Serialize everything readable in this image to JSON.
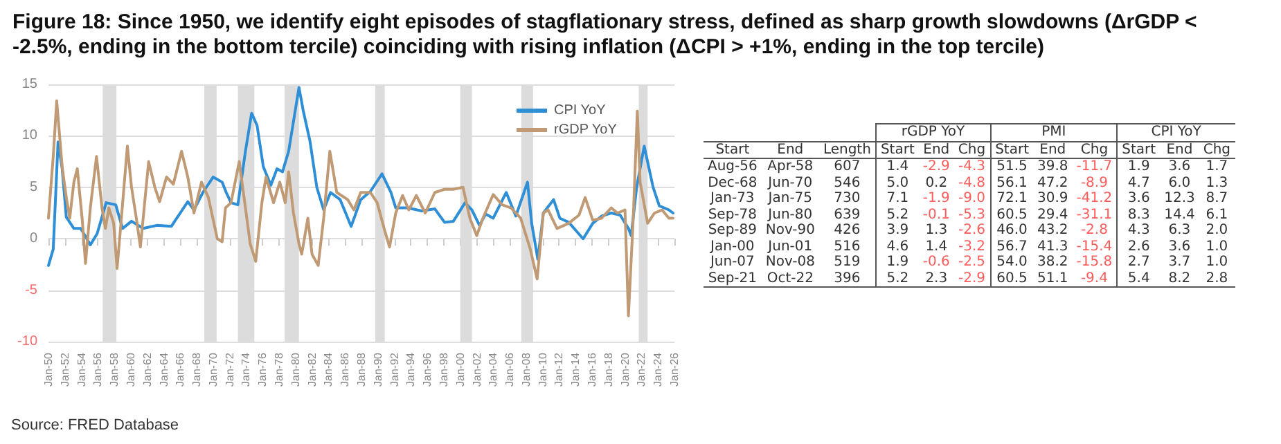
{
  "chart_data": [
    {
      "type": "line",
      "title": "Figure 18: Since 1950, we identify eight episodes of stagflationary stress, defined as sharp growth slowdowns (ΔrGDP < -2.5%, ending in the bottom tercile) coinciding with rising inflation (ΔCPI > +1%, ending in the top tercile)",
      "annotations": [
        "Source: FRED Database"
      ],
      "series": [
        {
          "name": "CPI YoY",
          "color": "#2e8fd6",
          "x": [
            "1950-01",
            "1950-08",
            "1951-03",
            "1951-09",
            "1952-03",
            "1953-02",
            "1953-12",
            "1955-02",
            "1955-12",
            "1957-01",
            "1958-03",
            "1959-01",
            "1960-02",
            "1961-07",
            "1963-03",
            "1964-12",
            "1966-01",
            "1966-12",
            "1967-09",
            "1968-10",
            "1970-01",
            "1971-02",
            "1971-08",
            "1972-03",
            "1973-01",
            "1973-12",
            "1974-09",
            "1975-05",
            "1976-02",
            "1977-01",
            "1977-10",
            "1978-06",
            "1979-03",
            "1980-06",
            "1980-12",
            "1981-10",
            "1982-08",
            "1983-06",
            "1984-04",
            "1985-06",
            "1986-10",
            "1987-12",
            "1989-02",
            "1990-07",
            "1991-08",
            "1992-03",
            "1993-08",
            "1995-05",
            "1996-12",
            "1998-02",
            "1999-03",
            "2000-08",
            "2001-06",
            "2002-05",
            "2003-02",
            "2004-01",
            "2005-08",
            "2006-10",
            "2008-03",
            "2008-09",
            "2009-06",
            "2010-02",
            "2011-05",
            "2012-02",
            "2013-03",
            "2014-12",
            "2016-02",
            "2017-03",
            "2018-05",
            "2019-06",
            "2020-06",
            "2020-10",
            "2021-06",
            "2022-05",
            "2023-06",
            "2024-03",
            "2025-05",
            "2025-11"
          ],
          "values": [
            -2.6,
            -1.0,
            9.4,
            6.8,
            2.1,
            1.0,
            1.0,
            -0.6,
            0.5,
            3.5,
            3.3,
            1.0,
            1.7,
            1.0,
            1.3,
            1.2,
            2.5,
            3.6,
            2.8,
            4.5,
            6.0,
            5.5,
            4.5,
            3.5,
            3.3,
            8.5,
            12.2,
            11.0,
            7.0,
            5.2,
            6.8,
            6.5,
            8.5,
            14.7,
            12.5,
            9.5,
            5.0,
            2.8,
            4.5,
            3.8,
            1.2,
            3.8,
            4.6,
            6.3,
            4.5,
            3.0,
            3.0,
            2.7,
            2.9,
            1.6,
            1.7,
            3.5,
            2.8,
            1.3,
            2.4,
            2.0,
            4.5,
            2.2,
            5.5,
            1.5,
            -2.0,
            2.5,
            3.8,
            2.0,
            1.6,
            0.0,
            1.5,
            2.2,
            2.5,
            2.3,
            1.0,
            0.3,
            5.0,
            9.0,
            5.0,
            3.2,
            2.8,
            2.5
          ]
        },
        {
          "name": "rGDP YoY",
          "color": "#c09a74",
          "x": [
            "1950-01",
            "1950-08",
            "1951-01",
            "1951-09",
            "1952-03",
            "1952-08",
            "1953-02",
            "1953-07",
            "1954-02",
            "1954-07",
            "1955-02",
            "1955-11",
            "1956-07",
            "1956-12",
            "1957-05",
            "1957-12",
            "1958-05",
            "1958-10",
            "1959-08",
            "1960-02",
            "1960-09",
            "1961-03",
            "1962-03",
            "1962-12",
            "1963-07",
            "1964-05",
            "1965-03",
            "1966-03",
            "1966-12",
            "1967-09",
            "1968-08",
            "1969-06",
            "1970-07",
            "1971-02",
            "1971-07",
            "1972-03",
            "1973-03",
            "1973-12",
            "1974-07",
            "1975-03",
            "1975-12",
            "1976-06",
            "1977-05",
            "1978-02",
            "1978-10",
            "1979-03",
            "1979-10",
            "1980-06",
            "1980-10",
            "1981-07",
            "1982-01",
            "1982-10",
            "1983-06",
            "1984-03",
            "1985-01",
            "1986-05",
            "1987-02",
            "1987-12",
            "1989-02",
            "1989-12",
            "1990-10",
            "1991-06",
            "1992-03",
            "1993-01",
            "1993-10",
            "1994-09",
            "1995-10",
            "1996-12",
            "1998-02",
            "1999-03",
            "2000-05",
            "2001-03",
            "2002-01",
            "2002-10",
            "2004-01",
            "2005-02",
            "2006-03",
            "2007-05",
            "2008-07",
            "2009-05",
            "2010-02",
            "2010-09",
            "2011-10",
            "2013-03",
            "2014-06",
            "2015-03",
            "2016-02",
            "2017-03",
            "2018-05",
            "2019-02",
            "2020-01",
            "2020-06",
            "2021-01",
            "2021-07",
            "2021-11",
            "2022-10",
            "2023-08",
            "2024-07",
            "2025-05",
            "2025-11"
          ],
          "values": [
            2.0,
            8.0,
            13.4,
            7.0,
            4.0,
            2.0,
            5.5,
            6.8,
            2.0,
            -2.4,
            3.0,
            8.0,
            3.0,
            1.0,
            3.0,
            1.5,
            -2.9,
            1.0,
            9.0,
            5.0,
            2.0,
            -0.8,
            7.5,
            5.0,
            3.6,
            6.0,
            5.3,
            8.5,
            6.0,
            2.5,
            5.5,
            4.0,
            0.0,
            -0.3,
            3.0,
            3.5,
            7.5,
            3.0,
            -0.5,
            -2.2,
            3.5,
            6.0,
            3.5,
            5.5,
            3.5,
            6.5,
            2.5,
            -0.5,
            -1.5,
            2.0,
            -1.5,
            -2.6,
            2.0,
            8.5,
            4.5,
            3.8,
            2.8,
            4.5,
            4.5,
            3.5,
            1.0,
            -0.8,
            2.5,
            4.2,
            2.8,
            4.2,
            2.5,
            4.5,
            4.8,
            4.8,
            5.0,
            2.0,
            0.3,
            2.0,
            4.3,
            3.3,
            3.0,
            2.0,
            -1.0,
            -3.9,
            2.5,
            2.8,
            1.0,
            1.5,
            2.3,
            4.0,
            1.8,
            2.0,
            3.0,
            2.5,
            2.8,
            -7.5,
            2.0,
            12.4,
            5.5,
            1.5,
            2.5,
            2.8,
            2.0,
            2.0
          ]
        }
      ],
      "bands": [
        {
          "axis": "x",
          "from": "1956-08",
          "to": "1958-04",
          "color": "#dcdcdc"
        },
        {
          "axis": "x",
          "from": "1968-12",
          "to": "1970-06",
          "color": "#dcdcdc"
        },
        {
          "axis": "x",
          "from": "1973-01",
          "to": "1975-01",
          "color": "#dcdcdc"
        },
        {
          "axis": "x",
          "from": "1978-09",
          "to": "1980-06",
          "color": "#dcdcdc"
        },
        {
          "axis": "x",
          "from": "1989-09",
          "to": "1990-11",
          "color": "#dcdcdc"
        },
        {
          "axis": "x",
          "from": "2000-01",
          "to": "2001-06",
          "color": "#dcdcdc"
        },
        {
          "axis": "x",
          "from": "2007-06",
          "to": "2008-11",
          "color": "#dcdcdc"
        },
        {
          "axis": "x",
          "from": "2021-09",
          "to": "2022-10",
          "color": "#dcdcdc"
        }
      ],
      "xlim": [
        "1950-01",
        "2026-01"
      ],
      "xticks": [
        {
          "value": "1950-01",
          "label": "Jan-50"
        },
        {
          "value": "1952-01",
          "label": "Jan-52"
        },
        {
          "value": "1954-01",
          "label": "Jan-54"
        },
        {
          "value": "1956-01",
          "label": "Jan-56"
        },
        {
          "value": "1958-01",
          "label": "Jan-58"
        },
        {
          "value": "1960-01",
          "label": "Jan-60"
        },
        {
          "value": "1962-01",
          "label": "Jan-62"
        },
        {
          "value": "1964-01",
          "label": "Jan-64"
        },
        {
          "value": "1966-01",
          "label": "Jan-66"
        },
        {
          "value": "1968-01",
          "label": "Jan-68"
        },
        {
          "value": "1970-01",
          "label": "Jan-70"
        },
        {
          "value": "1972-01",
          "label": "Jan-72"
        },
        {
          "value": "1974-01",
          "label": "Jan-74"
        },
        {
          "value": "1976-01",
          "label": "Jan-76"
        },
        {
          "value": "1978-01",
          "label": "Jan-78"
        },
        {
          "value": "1980-01",
          "label": "Jan-80"
        },
        {
          "value": "1982-01",
          "label": "Jan-82"
        },
        {
          "value": "1984-01",
          "label": "Jan-84"
        },
        {
          "value": "1986-01",
          "label": "Jan-86"
        },
        {
          "value": "1988-01",
          "label": "Jan-88"
        },
        {
          "value": "1990-01",
          "label": "Jan-90"
        },
        {
          "value": "1992-01",
          "label": "Jan-92"
        },
        {
          "value": "1994-01",
          "label": "Jan-94"
        },
        {
          "value": "1996-01",
          "label": "Jan-96"
        },
        {
          "value": "1998-01",
          "label": "Jan-98"
        },
        {
          "value": "2000-01",
          "label": "Jan-00"
        },
        {
          "value": "2002-01",
          "label": "Jan-02"
        },
        {
          "value": "2004-01",
          "label": "Jan-04"
        },
        {
          "value": "2006-01",
          "label": "Jan-06"
        },
        {
          "value": "2008-01",
          "label": "Jan-08"
        },
        {
          "value": "2010-01",
          "label": "Jan-10"
        },
        {
          "value": "2012-01",
          "label": "Jan-12"
        },
        {
          "value": "2014-01",
          "label": "Jan-14"
        },
        {
          "value": "2016-01",
          "label": "Jan-16"
        },
        {
          "value": "2018-01",
          "label": "Jan-18"
        },
        {
          "value": "2020-01",
          "label": "Jan-20"
        },
        {
          "value": "2022-01",
          "label": "Jan-22"
        },
        {
          "value": "2024-01",
          "label": "Jan-24"
        },
        {
          "value": "2026-01",
          "label": "Jan-26"
        }
      ],
      "ylim": [
        -10,
        15
      ],
      "yticks": [
        -10,
        -5,
        0,
        5,
        10,
        15
      ],
      "grid": "y",
      "legend": "top right",
      "marker": "none",
      "line_style": "solid"
    },
    {
      "type": "other",
      "annotations": [
        "rGDP YoY",
        "PMI",
        "CPI YoY"
      ],
      "categories": [
        "Start",
        "End",
        "Length",
        "Start",
        "End",
        "Chg",
        "Start",
        "End",
        "Chg",
        "Start",
        "End",
        "Chg"
      ],
      "cell_labels": [
        [
          "Aug-56",
          "Apr-58",
          "607",
          "1.4",
          "-2.9",
          "-4.3",
          "51.5",
          "39.8",
          "-11.7",
          "1.9",
          "3.6",
          "1.7"
        ],
        [
          "Dec-68",
          "Jun-70",
          "546",
          "5.0",
          "0.2",
          "-4.8",
          "56.1",
          "47.2",
          "-8.9",
          "4.7",
          "6.0",
          "1.3"
        ],
        [
          "Jan-73",
          "Jan-75",
          "730",
          "7.1",
          "-1.9",
          "-9.0",
          "72.1",
          "30.9",
          "-41.2",
          "3.6",
          "12.3",
          "8.7"
        ],
        [
          "Sep-78",
          "Jun-80",
          "639",
          "5.2",
          "-0.1",
          "-5.3",
          "60.5",
          "29.4",
          "-31.1",
          "8.3",
          "14.4",
          "6.1"
        ],
        [
          "Sep-89",
          "Nov-90",
          "426",
          "3.9",
          "1.3",
          "-2.6",
          "46.0",
          "43.2",
          "-2.8",
          "4.3",
          "6.3",
          "2.0"
        ],
        [
          "Jan-00",
          "Jun-01",
          "516",
          "4.6",
          "1.4",
          "-3.2",
          "56.7",
          "41.3",
          "-15.4",
          "2.6",
          "3.6",
          "1.0"
        ],
        [
          "Jun-07",
          "Nov-08",
          "519",
          "1.9",
          "-0.6",
          "-2.5",
          "54.0",
          "38.2",
          "-15.8",
          "2.7",
          "3.7",
          "1.0"
        ],
        [
          "Sep-21",
          "Oct-22",
          "396",
          "5.2",
          "2.3",
          "-2.9",
          "60.5",
          "51.1",
          "-9.4",
          "5.4",
          "8.2",
          "2.8"
        ]
      ]
    }
  ]
}
